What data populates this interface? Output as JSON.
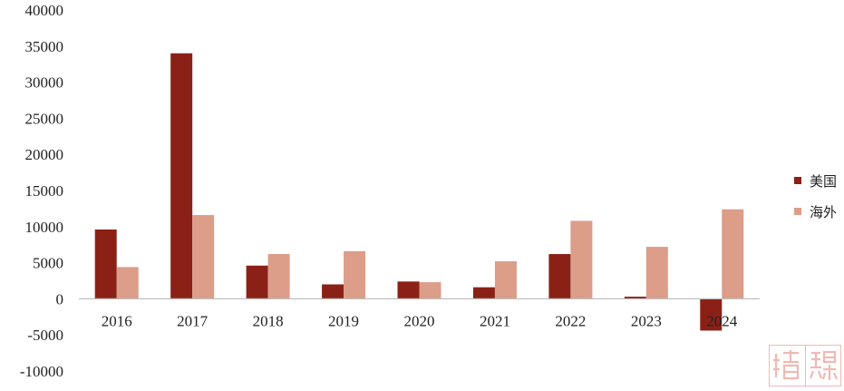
{
  "chart_data": {
    "type": "bar",
    "title": "",
    "xlabel": "",
    "ylabel": "",
    "categories": [
      "2016",
      "2017",
      "2018",
      "2019",
      "2020",
      "2021",
      "2022",
      "2023",
      "2024"
    ],
    "series": [
      {
        "name": "美国",
        "color": "#8b2116",
        "values": [
          9600,
          34000,
          4600,
          2000,
          2400,
          1600,
          6200,
          300,
          -4400
        ]
      },
      {
        "name": "海外",
        "color": "#dc9d89",
        "values": [
          4400,
          11600,
          6200,
          6600,
          2300,
          5200,
          10800,
          7200,
          12400
        ]
      }
    ],
    "ylim": [
      -10000,
      40000
    ],
    "yticks": [
      "40000",
      "35000",
      "30000",
      "25000",
      "20000",
      "15000",
      "10000",
      "5000",
      "0",
      "-5000",
      "-10000"
    ],
    "grid": false,
    "legend_position": "right"
  },
  "watermark": {
    "text": "精锐",
    "color": "#f0b9b3"
  }
}
